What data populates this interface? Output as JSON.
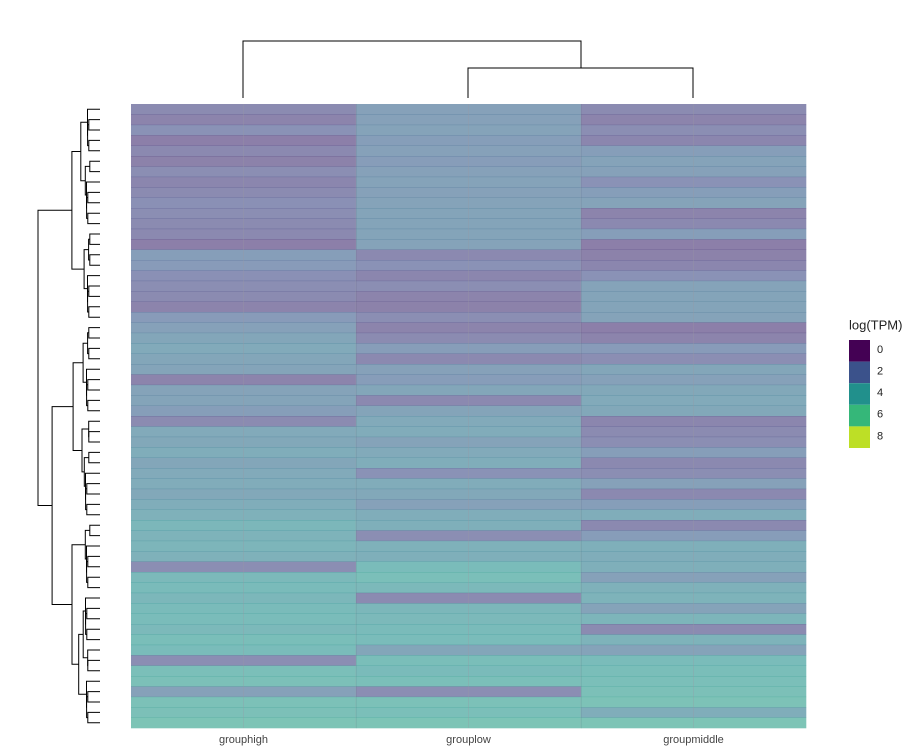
{
  "chart_data": {
    "type": "heatmap",
    "categories": [
      "grouphigh",
      "grouplow",
      "groupmiddle"
    ],
    "colorlim": [
      0,
      8
    ],
    "legend": {
      "title": "log(TPM)",
      "ticks": [
        0,
        2,
        4,
        6,
        8
      ],
      "colors": [
        "#440154",
        "#3b528b",
        "#21908c",
        "#35b779",
        "#bddf26"
      ]
    },
    "values": [
      [
        1.5,
        2.5,
        1.5
      ],
      [
        1.2,
        2.5,
        1.2
      ],
      [
        1.8,
        2.6,
        1.6
      ],
      [
        1.0,
        2.4,
        1.3
      ],
      [
        1.4,
        2.5,
        2.4
      ],
      [
        1.1,
        2.3,
        2.6
      ],
      [
        1.6,
        2.5,
        2.5
      ],
      [
        1.3,
        2.6,
        1.8
      ],
      [
        1.5,
        2.5,
        2.4
      ],
      [
        1.7,
        2.6,
        2.6
      ],
      [
        1.6,
        2.7,
        1.2
      ],
      [
        1.5,
        2.7,
        1.4
      ],
      [
        1.4,
        2.7,
        2.4
      ],
      [
        1.0,
        2.6,
        1.0
      ],
      [
        2.4,
        1.4,
        1.1
      ],
      [
        2.2,
        1.8,
        1.3
      ],
      [
        1.7,
        1.3,
        1.8
      ],
      [
        1.6,
        1.6,
        2.6
      ],
      [
        1.5,
        1.2,
        2.7
      ],
      [
        1.2,
        1.1,
        2.7
      ],
      [
        2.2,
        1.6,
        2.6
      ],
      [
        2.5,
        1.2,
        1.0
      ],
      [
        2.8,
        1.5,
        1.2
      ],
      [
        3.0,
        2.3,
        2.2
      ],
      [
        2.8,
        1.4,
        1.6
      ],
      [
        2.7,
        2.5,
        2.8
      ],
      [
        1.2,
        2.3,
        2.5
      ],
      [
        2.6,
        2.8,
        2.9
      ],
      [
        2.7,
        1.4,
        3.0
      ],
      [
        2.4,
        2.7,
        2.9
      ],
      [
        1.5,
        3.0,
        1.3
      ],
      [
        3.0,
        3.1,
        1.5
      ],
      [
        2.9,
        2.6,
        1.6
      ],
      [
        3.2,
        3.0,
        2.4
      ],
      [
        2.8,
        3.2,
        1.4
      ],
      [
        3.0,
        1.8,
        1.6
      ],
      [
        3.1,
        3.1,
        2.5
      ],
      [
        2.9,
        2.9,
        1.4
      ],
      [
        3.2,
        2.5,
        2.4
      ],
      [
        3.4,
        3.2,
        3.2
      ],
      [
        3.7,
        3.3,
        1.4
      ],
      [
        3.5,
        1.6,
        2.3
      ],
      [
        3.6,
        3.4,
        3.3
      ],
      [
        3.4,
        3.3,
        3.2
      ],
      [
        1.6,
        4.0,
        3.3
      ],
      [
        3.8,
        4.2,
        2.5
      ],
      [
        3.9,
        3.8,
        3.4
      ],
      [
        3.7,
        1.5,
        3.5
      ],
      [
        3.9,
        3.7,
        2.6
      ],
      [
        4.0,
        3.8,
        3.6
      ],
      [
        3.8,
        3.9,
        1.5
      ],
      [
        4.1,
        4.0,
        3.5
      ],
      [
        4.0,
        2.8,
        2.6
      ],
      [
        1.6,
        4.1,
        4.0
      ],
      [
        4.2,
        3.9,
        4.1
      ],
      [
        4.3,
        4.2,
        4.2
      ],
      [
        2.5,
        1.6,
        4.3
      ],
      [
        4.4,
        4.4,
        4.5
      ],
      [
        4.3,
        4.2,
        3.2
      ],
      [
        4.6,
        4.6,
        4.6
      ]
    ]
  }
}
